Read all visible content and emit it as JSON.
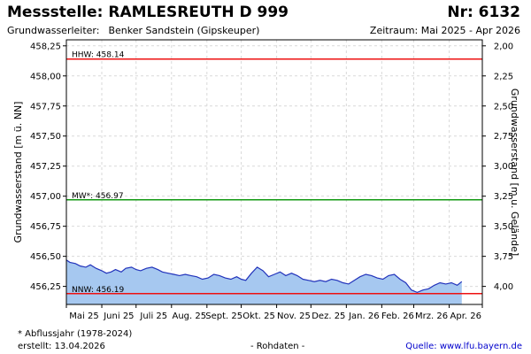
{
  "header": {
    "title": "Messstelle: RAMLESREUTH D 999",
    "nr": "Nr: 6132",
    "aquifer_label": "Grundwasserleiter:",
    "aquifer_value": "Benker Sandstein (Gipskeuper)",
    "period": "Zeitraum: Mai 2025 - Apr 2026"
  },
  "footer": {
    "note": "* Abflussjahr (1978-2024)",
    "created": "erstellt:  13.04.2026",
    "rohdaten": "- Rohdaten -",
    "source_label": "Quelle:",
    "source_link": "www.lfu.bayern.de"
  },
  "chart_data": {
    "type": "area",
    "ylabel_left": "Grundwasserstand [m ü. NN]",
    "ylabel_right": "Grundwasserstand [m u. Gelände]",
    "ylim": [
      456.1,
      458.3
    ],
    "yticks": [
      "458,25",
      "458,00",
      "457,75",
      "457,50",
      "457,25",
      "457,00",
      "456,75",
      "456,50",
      "456,25"
    ],
    "yticks_right": [
      "2,00",
      "2,25",
      "2,50",
      "2,75",
      "3,00",
      "3,25",
      "3,50",
      "3,75",
      "4,00"
    ],
    "xticks": [
      "Mai 25",
      "Juni 25",
      "Juli 25",
      "Aug. 25",
      "Sept. 25",
      "Okt. 25",
      "Nov. 25",
      "Dez. 25",
      "Jan. 26",
      "Feb. 26",
      "Mrz. 26",
      "Apr. 26"
    ],
    "grid": true,
    "colors": {
      "fill": "#a6c8f0",
      "line": "#2233bb",
      "hhw": "#ee1111",
      "mw": "#119911",
      "nnw": "#ee1111"
    },
    "reference_lines": [
      {
        "label": "HHW: 458.14",
        "value": 458.14
      },
      {
        "label": "MW*: 456.97",
        "value": 456.97
      },
      {
        "label": "NNW: 456.19",
        "value": 456.19
      }
    ],
    "series": [
      {
        "x": [
          "2025-05-01",
          "2025-05-04",
          "2025-05-09",
          "2025-05-13",
          "2025-05-18",
          "2025-05-22",
          "2025-05-27",
          "2025-06-01",
          "2025-06-05",
          "2025-06-09",
          "2025-06-13",
          "2025-06-18",
          "2025-06-22",
          "2025-06-27",
          "2025-07-01",
          "2025-07-05",
          "2025-07-10",
          "2025-07-15",
          "2025-07-20",
          "2025-07-24",
          "2025-07-29",
          "2025-08-03",
          "2025-08-08",
          "2025-08-13",
          "2025-08-18",
          "2025-08-23",
          "2025-08-28",
          "2025-09-02",
          "2025-09-07",
          "2025-09-12",
          "2025-09-17",
          "2025-09-22",
          "2025-09-27",
          "2025-10-01",
          "2025-10-05",
          "2025-10-10",
          "2025-10-15",
          "2025-10-20",
          "2025-10-25",
          "2025-10-30",
          "2025-11-04",
          "2025-11-09",
          "2025-11-14",
          "2025-11-19",
          "2025-11-24",
          "2025-11-29",
          "2025-12-04",
          "2025-12-09",
          "2025-12-14",
          "2025-12-19",
          "2025-12-24",
          "2025-12-29",
          "2026-01-03",
          "2026-01-08",
          "2026-01-13",
          "2026-01-18",
          "2026-01-23",
          "2026-01-28",
          "2026-02-02",
          "2026-02-07",
          "2026-02-12",
          "2026-02-17",
          "2026-02-22",
          "2026-02-27",
          "2026-03-04",
          "2026-03-09",
          "2026-03-14",
          "2026-03-19",
          "2026-03-24",
          "2026-03-29",
          "2026-04-03",
          "2026-04-08",
          "2026-04-12"
        ],
        "y": [
          456.47,
          456.45,
          456.44,
          456.42,
          456.41,
          456.43,
          456.4,
          456.38,
          456.36,
          456.37,
          456.39,
          456.37,
          456.4,
          456.41,
          456.39,
          456.38,
          456.4,
          456.41,
          456.39,
          456.37,
          456.36,
          456.35,
          456.34,
          456.35,
          456.34,
          456.33,
          456.31,
          456.32,
          456.35,
          456.34,
          456.32,
          456.31,
          456.33,
          456.31,
          456.3,
          456.36,
          456.41,
          456.38,
          456.33,
          456.35,
          456.37,
          456.34,
          456.36,
          456.34,
          456.31,
          456.3,
          456.29,
          456.3,
          456.29,
          456.31,
          456.3,
          456.28,
          456.27,
          456.3,
          456.33,
          456.35,
          456.34,
          456.32,
          456.31,
          456.34,
          456.35,
          456.31,
          456.28,
          456.22,
          456.2,
          456.22,
          456.23,
          456.26,
          456.28,
          456.27,
          456.28,
          456.26,
          456.29
        ]
      }
    ]
  }
}
